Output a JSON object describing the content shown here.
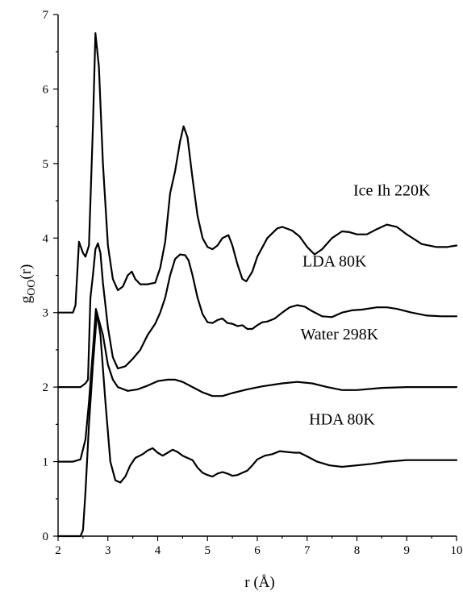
{
  "chart_data": {
    "type": "line",
    "title": "",
    "xlabel": "r (Å)",
    "ylabel_main": "g",
    "ylabel_sub": "OO",
    "ylabel_tail": "(r)",
    "xlim": [
      2,
      10
    ],
    "ylim": [
      0,
      7
    ],
    "xticks": [
      2,
      3,
      4,
      5,
      6,
      7,
      8,
      9,
      10
    ],
    "yticks": [
      0,
      1,
      2,
      3,
      4,
      5,
      6,
      7
    ],
    "grid": false,
    "legend": "none",
    "series": [
      {
        "name": "Ice Ih 220K",
        "label_anchor": [
          8.7,
          4.57
        ],
        "points": [
          [
            2.0,
            3.0
          ],
          [
            2.3,
            3.0
          ],
          [
            2.35,
            3.1
          ],
          [
            2.42,
            3.95
          ],
          [
            2.5,
            3.8
          ],
          [
            2.55,
            3.75
          ],
          [
            2.62,
            3.9
          ],
          [
            2.7,
            5.5
          ],
          [
            2.75,
            6.75
          ],
          [
            2.82,
            6.3
          ],
          [
            2.9,
            5.0
          ],
          [
            3.0,
            3.9
          ],
          [
            3.1,
            3.45
          ],
          [
            3.2,
            3.3
          ],
          [
            3.3,
            3.35
          ],
          [
            3.4,
            3.5
          ],
          [
            3.48,
            3.55
          ],
          [
            3.55,
            3.45
          ],
          [
            3.65,
            3.38
          ],
          [
            3.8,
            3.38
          ],
          [
            3.95,
            3.4
          ],
          [
            4.05,
            3.6
          ],
          [
            4.15,
            3.95
          ],
          [
            4.25,
            4.6
          ],
          [
            4.35,
            4.9
          ],
          [
            4.45,
            5.3
          ],
          [
            4.52,
            5.5
          ],
          [
            4.6,
            5.35
          ],
          [
            4.7,
            4.8
          ],
          [
            4.8,
            4.3
          ],
          [
            4.9,
            4.0
          ],
          [
            5.0,
            3.88
          ],
          [
            5.1,
            3.85
          ],
          [
            5.2,
            3.9
          ],
          [
            5.3,
            4.0
          ],
          [
            5.42,
            4.04
          ],
          [
            5.5,
            3.9
          ],
          [
            5.6,
            3.65
          ],
          [
            5.7,
            3.45
          ],
          [
            5.78,
            3.42
          ],
          [
            5.9,
            3.55
          ],
          [
            6.0,
            3.75
          ],
          [
            6.2,
            4.0
          ],
          [
            6.4,
            4.13
          ],
          [
            6.5,
            4.15
          ],
          [
            6.7,
            4.1
          ],
          [
            6.85,
            4.02
          ],
          [
            7.0,
            3.88
          ],
          [
            7.15,
            3.78
          ],
          [
            7.3,
            3.85
          ],
          [
            7.5,
            4.0
          ],
          [
            7.7,
            4.09
          ],
          [
            7.85,
            4.08
          ],
          [
            8.0,
            4.05
          ],
          [
            8.2,
            4.05
          ],
          [
            8.4,
            4.12
          ],
          [
            8.6,
            4.18
          ],
          [
            8.8,
            4.15
          ],
          [
            9.0,
            4.05
          ],
          [
            9.3,
            3.92
          ],
          [
            9.6,
            3.88
          ],
          [
            9.8,
            3.88
          ],
          [
            10.0,
            3.9
          ]
        ]
      },
      {
        "name": "LDA 80K",
        "label_anchor": [
          7.55,
          3.62
        ],
        "points": [
          [
            2.0,
            2.0
          ],
          [
            2.45,
            2.0
          ],
          [
            2.55,
            2.05
          ],
          [
            2.6,
            2.1
          ],
          [
            2.65,
            3.2
          ],
          [
            2.7,
            3.5
          ],
          [
            2.75,
            3.85
          ],
          [
            2.8,
            3.93
          ],
          [
            2.85,
            3.8
          ],
          [
            2.9,
            3.4
          ],
          [
            3.0,
            2.8
          ],
          [
            3.1,
            2.4
          ],
          [
            3.2,
            2.25
          ],
          [
            3.35,
            2.28
          ],
          [
            3.5,
            2.38
          ],
          [
            3.65,
            2.5
          ],
          [
            3.8,
            2.7
          ],
          [
            3.95,
            2.85
          ],
          [
            4.05,
            3.0
          ],
          [
            4.15,
            3.2
          ],
          [
            4.25,
            3.5
          ],
          [
            4.35,
            3.72
          ],
          [
            4.45,
            3.78
          ],
          [
            4.55,
            3.77
          ],
          [
            4.62,
            3.7
          ],
          [
            4.7,
            3.5
          ],
          [
            4.8,
            3.2
          ],
          [
            4.9,
            2.98
          ],
          [
            5.0,
            2.87
          ],
          [
            5.1,
            2.86
          ],
          [
            5.2,
            2.9
          ],
          [
            5.3,
            2.92
          ],
          [
            5.4,
            2.86
          ],
          [
            5.5,
            2.85
          ],
          [
            5.6,
            2.82
          ],
          [
            5.7,
            2.83
          ],
          [
            5.8,
            2.78
          ],
          [
            5.9,
            2.78
          ],
          [
            6.0,
            2.83
          ],
          [
            6.1,
            2.87
          ],
          [
            6.2,
            2.88
          ],
          [
            6.35,
            2.92
          ],
          [
            6.5,
            3.0
          ],
          [
            6.65,
            3.07
          ],
          [
            6.8,
            3.1
          ],
          [
            6.95,
            3.08
          ],
          [
            7.1,
            3.02
          ],
          [
            7.3,
            2.95
          ],
          [
            7.5,
            2.94
          ],
          [
            7.7,
            3.0
          ],
          [
            7.9,
            3.03
          ],
          [
            8.1,
            3.04
          ],
          [
            8.4,
            3.07
          ],
          [
            8.6,
            3.07
          ],
          [
            8.8,
            3.05
          ],
          [
            9.1,
            3.0
          ],
          [
            9.4,
            2.96
          ],
          [
            9.7,
            2.95
          ],
          [
            10.0,
            2.95
          ]
        ]
      },
      {
        "name": "Water 298K",
        "label_anchor": [
          7.65,
          2.64
        ],
        "points": [
          [
            2.0,
            1.0
          ],
          [
            2.3,
            1.0
          ],
          [
            2.45,
            1.03
          ],
          [
            2.55,
            1.3
          ],
          [
            2.62,
            1.8
          ],
          [
            2.7,
            2.5
          ],
          [
            2.76,
            3.05
          ],
          [
            2.82,
            2.9
          ],
          [
            2.9,
            2.7
          ],
          [
            3.0,
            2.3
          ],
          [
            3.1,
            2.1
          ],
          [
            3.2,
            2.0
          ],
          [
            3.4,
            1.95
          ],
          [
            3.6,
            1.97
          ],
          [
            3.8,
            2.02
          ],
          [
            4.0,
            2.08
          ],
          [
            4.2,
            2.1
          ],
          [
            4.35,
            2.1
          ],
          [
            4.5,
            2.07
          ],
          [
            4.7,
            2.0
          ],
          [
            4.9,
            1.93
          ],
          [
            5.1,
            1.88
          ],
          [
            5.3,
            1.88
          ],
          [
            5.5,
            1.92
          ],
          [
            5.8,
            1.97
          ],
          [
            6.1,
            2.01
          ],
          [
            6.5,
            2.05
          ],
          [
            6.8,
            2.07
          ],
          [
            7.1,
            2.05
          ],
          [
            7.4,
            2.0
          ],
          [
            7.7,
            1.96
          ],
          [
            8.0,
            1.96
          ],
          [
            8.5,
            1.99
          ],
          [
            9.0,
            2.0
          ],
          [
            9.5,
            2.0
          ],
          [
            10.0,
            2.0
          ]
        ]
      },
      {
        "name": "HDA 80K",
        "label_anchor": [
          7.7,
          1.5
        ],
        "points": [
          [
            2.0,
            0.0
          ],
          [
            2.45,
            0.0
          ],
          [
            2.5,
            0.08
          ],
          [
            2.55,
            0.6
          ],
          [
            2.62,
            1.5
          ],
          [
            2.7,
            2.3
          ],
          [
            2.78,
            3.0
          ],
          [
            2.85,
            2.7
          ],
          [
            2.95,
            1.8
          ],
          [
            3.05,
            1.0
          ],
          [
            3.15,
            0.75
          ],
          [
            3.25,
            0.72
          ],
          [
            3.35,
            0.8
          ],
          [
            3.45,
            0.95
          ],
          [
            3.55,
            1.05
          ],
          [
            3.7,
            1.1
          ],
          [
            3.8,
            1.15
          ],
          [
            3.9,
            1.18
          ],
          [
            4.0,
            1.12
          ],
          [
            4.1,
            1.08
          ],
          [
            4.2,
            1.12
          ],
          [
            4.3,
            1.16
          ],
          [
            4.4,
            1.13
          ],
          [
            4.5,
            1.08
          ],
          [
            4.6,
            1.05
          ],
          [
            4.7,
            1.02
          ],
          [
            4.8,
            0.92
          ],
          [
            4.9,
            0.85
          ],
          [
            5.0,
            0.82
          ],
          [
            5.1,
            0.8
          ],
          [
            5.2,
            0.84
          ],
          [
            5.3,
            0.86
          ],
          [
            5.4,
            0.84
          ],
          [
            5.5,
            0.81
          ],
          [
            5.6,
            0.82
          ],
          [
            5.7,
            0.85
          ],
          [
            5.8,
            0.88
          ],
          [
            5.9,
            0.95
          ],
          [
            6.0,
            1.03
          ],
          [
            6.15,
            1.08
          ],
          [
            6.3,
            1.1
          ],
          [
            6.45,
            1.14
          ],
          [
            6.6,
            1.13
          ],
          [
            6.75,
            1.12
          ],
          [
            6.85,
            1.12
          ],
          [
            7.0,
            1.07
          ],
          [
            7.2,
            1.0
          ],
          [
            7.45,
            0.95
          ],
          [
            7.7,
            0.93
          ],
          [
            8.0,
            0.95
          ],
          [
            8.3,
            0.97
          ],
          [
            8.6,
            1.0
          ],
          [
            9.0,
            1.02
          ],
          [
            9.5,
            1.02
          ],
          [
            10.0,
            1.02
          ]
        ]
      }
    ]
  }
}
